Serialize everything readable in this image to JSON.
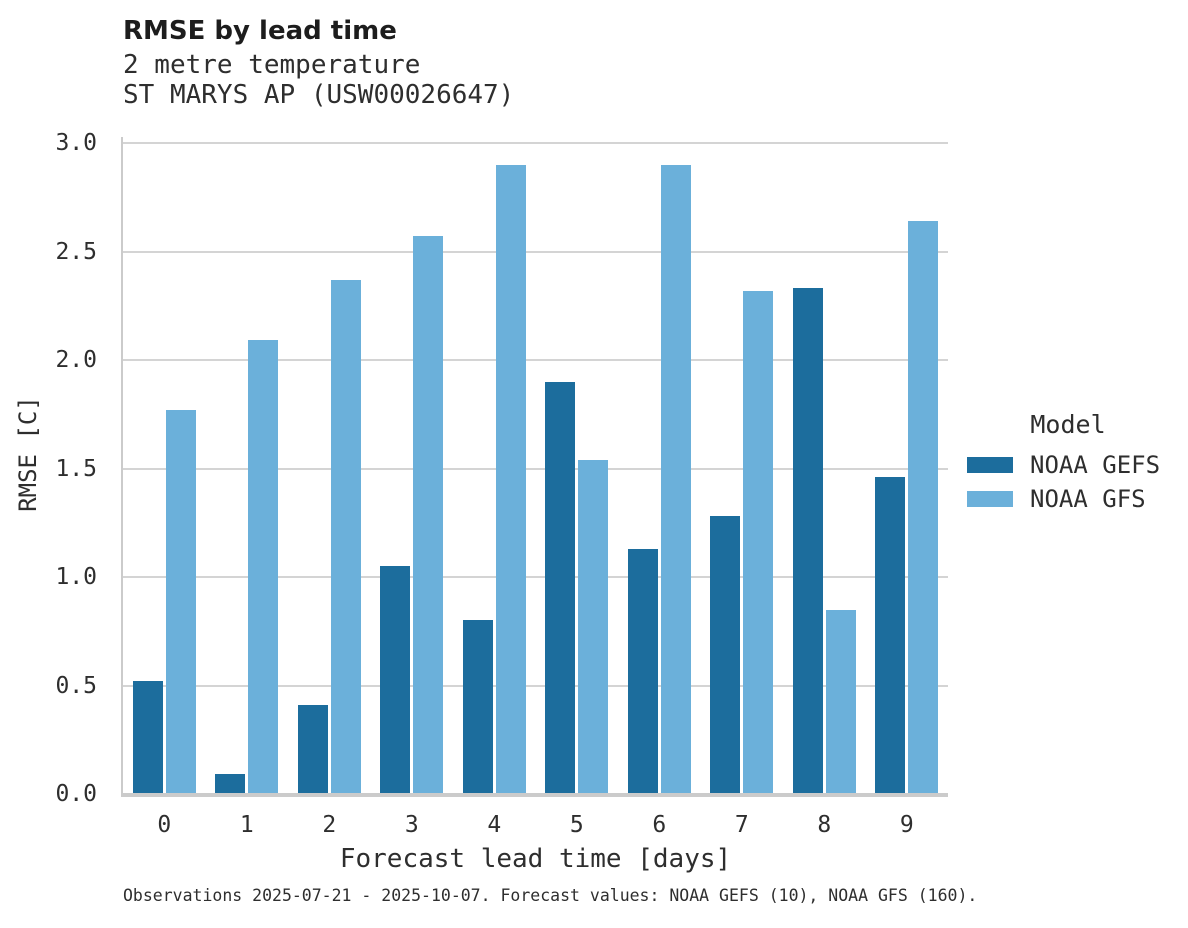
{
  "chart_data": {
    "type": "bar",
    "title": "RMSE by lead time",
    "subtitle": [
      "2 metre temperature",
      "ST MARYS AP (USW00026647)"
    ],
    "xlabel": "Forecast lead time [days]",
    "ylabel": "RMSE [C]",
    "ylim": [
      0.0,
      3.0
    ],
    "ytick_interval": 0.5,
    "ytick_labels": [
      "3.0",
      "2.5",
      "2.0",
      "1.5",
      "1.0",
      "0.5",
      "0.0"
    ],
    "categories": [
      "0",
      "1",
      "2",
      "3",
      "4",
      "5",
      "6",
      "7",
      "8",
      "9"
    ],
    "grid": true,
    "legend": {
      "title": "Model",
      "position": "right-center"
    },
    "series": [
      {
        "name": "NOAA GEFS",
        "color": "#1c6d9d",
        "values": [
          0.52,
          0.09,
          0.41,
          1.05,
          0.8,
          1.9,
          1.13,
          1.28,
          2.33,
          1.46
        ]
      },
      {
        "name": "NOAA GFS",
        "color": "#6bb0da",
        "values": [
          1.77,
          2.09,
          2.37,
          2.57,
          2.9,
          1.54,
          2.9,
          2.32,
          0.85,
          2.64
        ]
      }
    ],
    "footer": "Observations 2025-07-21 - 2025-10-07. Forecast values: NOAA GEFS (10), NOAA GFS (160)."
  },
  "style_colors": {
    "gefs_bar": "#1c6d9d",
    "gfs_bar": "#6bb0da",
    "gridline": "#d4d4d4",
    "spine": "#cbcbcb",
    "text": "#2e2e2e"
  }
}
